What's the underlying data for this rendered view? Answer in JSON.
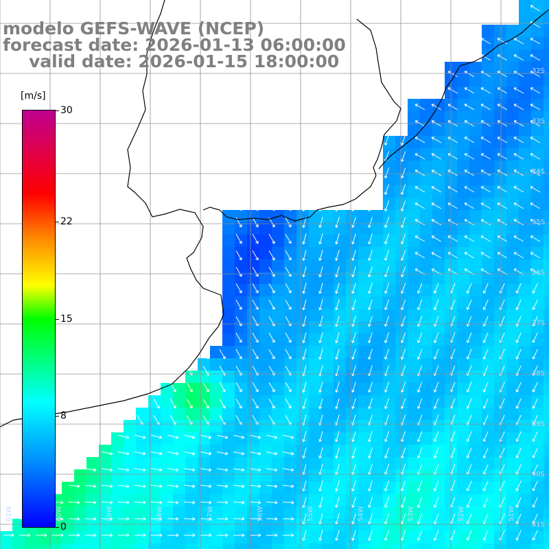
{
  "title": {
    "line1": "modelo GEFS-WAVE (NCEP)",
    "line2": "forecast date: 2026-01-13 06:00:00",
    "line3": "valid date: 2026-01-15 18:00:00"
  },
  "colorbar": {
    "unit": "[m/s]",
    "ticks": [
      {
        "label": "30",
        "value": 30
      },
      {
        "label": "22",
        "value": 22
      },
      {
        "label": "15",
        "value": 15
      },
      {
        "label": "8",
        "value": 8
      },
      {
        "label": "0",
        "value": 0
      }
    ],
    "min": 0,
    "max": 30
  },
  "colors": {
    "land": "#ffffff",
    "coastline": "#000000",
    "grid": "#808080",
    "arrows": "#ffffff",
    "title": "#808080"
  },
  "map": {
    "lat_labels": [
      "32S",
      "33S",
      "34S",
      "35S",
      "36S",
      "37S",
      "38S",
      "39S",
      "40S",
      "41S"
    ],
    "lon_labels": [
      "61W",
      "60W",
      "59W",
      "58W",
      "57W",
      "56W",
      "55W",
      "54W",
      "53W",
      "52W",
      "51W"
    ]
  }
}
